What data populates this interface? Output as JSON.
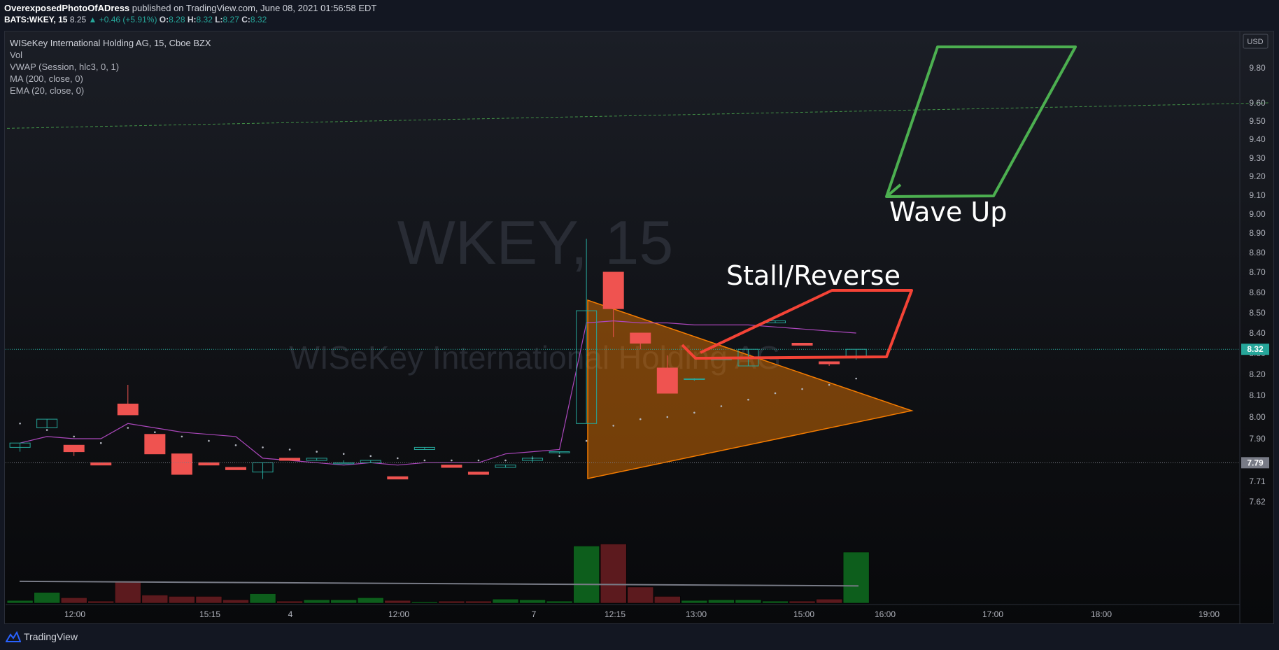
{
  "header": {
    "author": "OverexposedPhotoOfADress",
    "published": "published on TradingView.com, June 08, 2021 01:56:58 EDT",
    "symbol": "BATS:WKEY, 15",
    "last": "8.25",
    "change": "▲ +0.46 (+5.91%)",
    "o_label": "O:",
    "o": "8.28",
    "h_label": "H:",
    "h": "8.32",
    "l_label": "L:",
    "l": "8.27",
    "c_label": "C:",
    "c": "8.32"
  },
  "legend": {
    "title": "WISeKey International Holding AG, 15, Cboe BZX",
    "items": [
      "Vol",
      "VWAP (Session, hlc3, 0, 1)",
      "MA (200, close, 0)",
      "EMA (20, close, 0)"
    ]
  },
  "watermark": {
    "symbol": "WKEY, 15",
    "name": "WISeKey International Holding AG"
  },
  "footer": {
    "brand": "TradingView"
  },
  "colors": {
    "up": "#26a69a",
    "down": "#ef5350",
    "vwap": "#ab47bc",
    "ma": "#787b86",
    "ema": "#b2b5be",
    "triangle": "#f57c00",
    "green_shape": "#4caf50",
    "red_shape": "#f44336"
  },
  "chart_data": {
    "type": "candlestick",
    "currency": "USD",
    "y_ticks": [
      "9.80",
      "9.60",
      "9.50",
      "9.40",
      "9.30",
      "9.20",
      "9.10",
      "9.00",
      "8.90",
      "8.80",
      "8.70",
      "8.60",
      "8.50",
      "8.40",
      "8.30",
      "8.20",
      "8.10",
      "8.00",
      "7.90",
      "7.80",
      "7.71",
      "7.62"
    ],
    "x_ticks": [
      "12:00",
      "15:15",
      "4",
      "12:00",
      "7",
      "12:15",
      "13:00",
      "15:00",
      "16:00",
      "17:00",
      "18:00",
      "19:00"
    ],
    "last_price_label": "8.32",
    "prev_price_label": "7.79",
    "candles": [
      {
        "o": 7.86,
        "h": 7.88,
        "l": 7.84,
        "c": 7.88
      },
      {
        "o": 7.95,
        "h": 7.99,
        "l": 7.95,
        "c": 7.99
      },
      {
        "o": 7.87,
        "h": 7.87,
        "l": 7.82,
        "c": 7.84
      },
      {
        "o": 7.79,
        "h": 7.79,
        "l": 7.78,
        "c": 7.78
      },
      {
        "o": 8.06,
        "h": 8.15,
        "l": 8.01,
        "c": 8.01
      },
      {
        "o": 7.92,
        "h": 7.92,
        "l": 7.83,
        "c": 7.83
      },
      {
        "o": 7.83,
        "h": 7.83,
        "l": 7.74,
        "c": 7.74
      },
      {
        "o": 7.79,
        "h": 7.79,
        "l": 7.78,
        "c": 7.78
      },
      {
        "o": 7.77,
        "h": 7.77,
        "l": 7.76,
        "c": 7.76
      },
      {
        "o": 7.75,
        "h": 7.79,
        "l": 7.72,
        "c": 7.79
      },
      {
        "o": 7.81,
        "h": 7.81,
        "l": 7.8,
        "c": 7.8
      },
      {
        "o": 7.8,
        "h": 7.81,
        "l": 7.8,
        "c": 7.81
      },
      {
        "o": 7.79,
        "h": 7.8,
        "l": 7.79,
        "c": 7.79
      },
      {
        "o": 7.79,
        "h": 7.8,
        "l": 7.79,
        "c": 7.8
      },
      {
        "o": 7.73,
        "h": 7.73,
        "l": 7.72,
        "c": 7.72
      },
      {
        "o": 7.85,
        "h": 7.86,
        "l": 7.85,
        "c": 7.86
      },
      {
        "o": 7.78,
        "h": 7.78,
        "l": 7.77,
        "c": 7.77
      },
      {
        "o": 7.75,
        "h": 7.75,
        "l": 7.74,
        "c": 7.74
      },
      {
        "o": 7.77,
        "h": 7.78,
        "l": 7.77,
        "c": 7.78
      },
      {
        "o": 7.8,
        "h": 7.82,
        "l": 7.79,
        "c": 7.81
      },
      {
        "o": 7.84,
        "h": 7.84,
        "l": 7.83,
        "c": 7.84
      },
      {
        "o": 7.97,
        "h": 8.87,
        "l": 7.97,
        "c": 8.51
      },
      {
        "o": 8.7,
        "h": 8.7,
        "l": 8.38,
        "c": 8.52
      },
      {
        "o": 8.4,
        "h": 8.4,
        "l": 8.32,
        "c": 8.35
      },
      {
        "o": 8.23,
        "h": 8.29,
        "l": 8.11,
        "c": 8.11
      },
      {
        "o": 8.18,
        "h": 8.18,
        "l": 8.17,
        "c": 8.18
      },
      {
        "o": 8.27,
        "h": 8.28,
        "l": 8.27,
        "c": 8.28
      },
      {
        "o": 8.24,
        "h": 8.32,
        "l": 8.24,
        "c": 8.32
      },
      {
        "o": 8.45,
        "h": 8.46,
        "l": 8.45,
        "c": 8.46
      },
      {
        "o": 8.35,
        "h": 8.35,
        "l": 8.34,
        "c": 8.34
      },
      {
        "o": 8.26,
        "h": 8.26,
        "l": 8.24,
        "c": 8.25
      },
      {
        "o": 8.28,
        "h": 8.32,
        "l": 8.27,
        "c": 8.32
      }
    ],
    "volume_rel": [
      0.04,
      0.16,
      0.08,
      0.03,
      0.33,
      0.12,
      0.1,
      0.1,
      0.05,
      0.14,
      0.03,
      0.05,
      0.05,
      0.08,
      0.04,
      0.02,
      0.03,
      0.03,
      0.06,
      0.05,
      0.03,
      0.85,
      0.88,
      0.24,
      0.1,
      0.04,
      0.05,
      0.05,
      0.03,
      0.03,
      0.06,
      0.76
    ],
    "vwap": [
      7.88,
      7.91,
      7.9,
      7.9,
      7.97,
      7.95,
      7.93,
      7.92,
      7.91,
      7.81,
      7.8,
      7.79,
      7.78,
      7.79,
      7.78,
      7.79,
      7.79,
      7.79,
      7.83,
      7.84,
      7.85,
      8.45,
      8.46,
      8.45,
      8.45,
      8.44,
      8.44,
      8.44,
      8.43,
      8.42,
      8.41,
      8.4
    ],
    "ema_dots": [
      7.97,
      7.94,
      7.91,
      7.88,
      7.95,
      7.93,
      7.91,
      7.89,
      7.87,
      7.86,
      7.85,
      7.84,
      7.83,
      7.82,
      7.81,
      7.8,
      7.8,
      7.8,
      7.8,
      7.81,
      7.82,
      7.89,
      7.96,
      7.99,
      8.0,
      8.02,
      8.05,
      8.08,
      8.11,
      8.13,
      8.15,
      8.18
    ],
    "ma200": {
      "from": 7.67,
      "to": 7.65
    },
    "trendline": {
      "from": 9.46,
      "to": 9.6
    },
    "annotations": [
      "Stall/Reverse",
      "Wave Up"
    ]
  }
}
